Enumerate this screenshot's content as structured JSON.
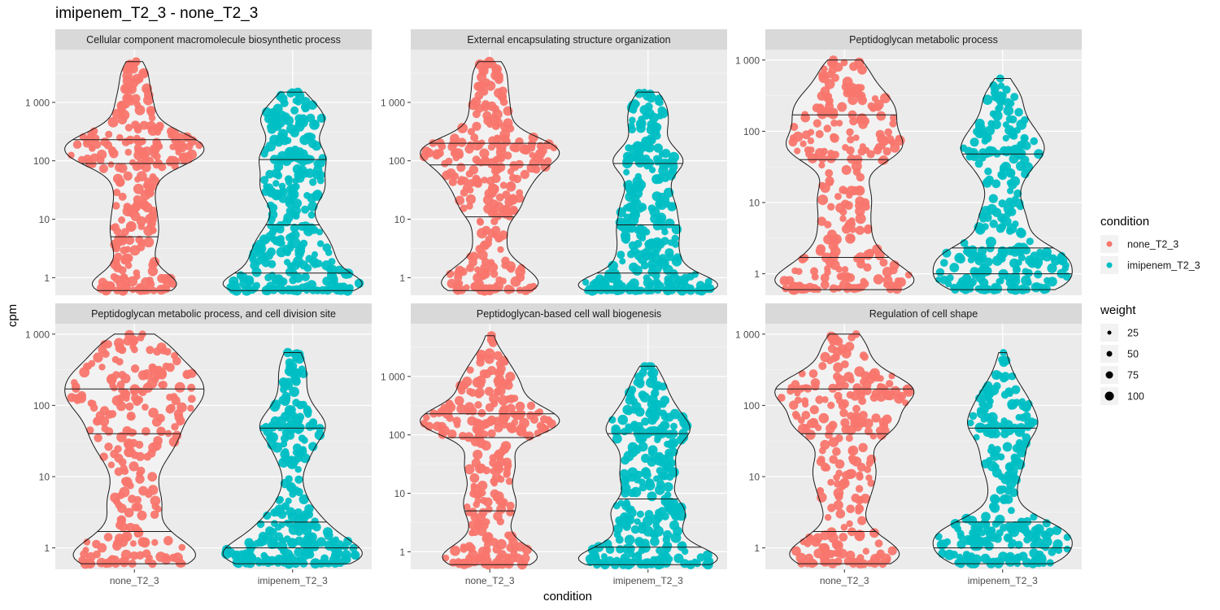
{
  "title": "imipenem_T2_3 - none_T2_3",
  "chart_data": {
    "type": "violin",
    "title": "imipenem_T2_3 - none_T2_3",
    "xlabel": "condition",
    "ylabel": "cpm",
    "y_scale": "log10",
    "categories": [
      "none_T2_3",
      "imipenem_T2_3"
    ],
    "legend_placement": "right",
    "legend": {
      "condition_title": "condition",
      "condition_items": [
        {
          "label": "none_T2_3",
          "color": "#F8766D"
        },
        {
          "label": "imipenem_T2_3",
          "color": "#00BFC4"
        }
      ],
      "weight_title": "weight",
      "weight_items": [
        "25",
        "50",
        "75",
        "100"
      ]
    },
    "colors": {
      "none_T2_3": "#F8766D",
      "imipenem_T2_3": "#00BFC4",
      "panel_bg": "#EBEBEB",
      "strip_bg": "#D9D9D9"
    },
    "panels": [
      {
        "title": "Cellular component macromolecule biosynthetic process",
        "y_ticks": [
          "1",
          "10",
          "100",
          "1 000"
        ],
        "y_tick_values": [
          1,
          10,
          100,
          1000
        ],
        "ylim": [
          0.5,
          8000
        ],
        "series": [
          {
            "name": "none_T2_3",
            "min": 0.6,
            "max": 5000,
            "quantiles": [
              5,
              90,
              230
            ],
            "n": 260
          },
          {
            "name": "imipenem_T2_3",
            "min": 0.6,
            "max": 1500,
            "quantiles": [
              1.2,
              8,
              105
            ],
            "n": 280
          }
        ]
      },
      {
        "title": "External encapsulating structure organization",
        "y_ticks": [
          "1",
          "10",
          "100",
          "1 000"
        ],
        "y_tick_values": [
          1,
          10,
          100,
          1000
        ],
        "ylim": [
          0.5,
          8000
        ],
        "series": [
          {
            "name": "none_T2_3",
            "min": 0.6,
            "max": 5000,
            "quantiles": [
              11,
              85,
              200
            ],
            "n": 260
          },
          {
            "name": "imipenem_T2_3",
            "min": 0.6,
            "max": 1500,
            "quantiles": [
              1.2,
              8,
              90
            ],
            "n": 280
          }
        ]
      },
      {
        "title": "Peptidoglycan metabolic process",
        "y_ticks": [
          "1",
          "10",
          "100",
          "1 000"
        ],
        "y_tick_values": [
          1,
          10,
          100,
          1000
        ],
        "ylim": [
          0.5,
          1400
        ],
        "series": [
          {
            "name": "none_T2_3",
            "min": 0.6,
            "max": 1000,
            "quantiles": [
              1.7,
              40,
              170
            ],
            "n": 240
          },
          {
            "name": "imipenem_T2_3",
            "min": 0.6,
            "max": 550,
            "quantiles": [
              1,
              2.3,
              48
            ],
            "n": 260
          }
        ]
      },
      {
        "title": "Peptidoglycan metabolic process, and cell division site",
        "y_ticks": [
          "1",
          "10",
          "100",
          "1 000"
        ],
        "y_tick_values": [
          1,
          10,
          100,
          1000
        ],
        "ylim": [
          0.5,
          1400
        ],
        "series": [
          {
            "name": "none_T2_3",
            "min": 0.6,
            "max": 1000,
            "quantiles": [
              1.7,
              40,
              170
            ],
            "n": 240
          },
          {
            "name": "imipenem_T2_3",
            "min": 0.6,
            "max": 550,
            "quantiles": [
              1,
              2.3,
              48
            ],
            "n": 260
          }
        ]
      },
      {
        "title": "Peptidoglycan-based cell wall biogenesis",
        "y_ticks": [
          "1",
          "10",
          "100",
          "1 000"
        ],
        "y_tick_values": [
          1,
          10,
          100,
          1000
        ],
        "ylim": [
          0.5,
          8000
        ],
        "series": [
          {
            "name": "none_T2_3",
            "min": 0.6,
            "max": 5000,
            "quantiles": [
              5,
              90,
              230
            ],
            "n": 260
          },
          {
            "name": "imipenem_T2_3",
            "min": 0.6,
            "max": 1500,
            "quantiles": [
              1.2,
              8,
              105
            ],
            "n": 280
          }
        ]
      },
      {
        "title": "Regulation of cell shape",
        "y_ticks": [
          "1",
          "10",
          "100",
          "1 000"
        ],
        "y_tick_values": [
          1,
          10,
          100,
          1000
        ],
        "ylim": [
          0.5,
          1400
        ],
        "series": [
          {
            "name": "none_T2_3",
            "min": 0.6,
            "max": 1000,
            "quantiles": [
              1.7,
              40,
              170
            ],
            "n": 240
          },
          {
            "name": "imipenem_T2_3",
            "min": 0.6,
            "max": 550,
            "quantiles": [
              1,
              2.3,
              48
            ],
            "n": 260
          }
        ]
      }
    ]
  }
}
